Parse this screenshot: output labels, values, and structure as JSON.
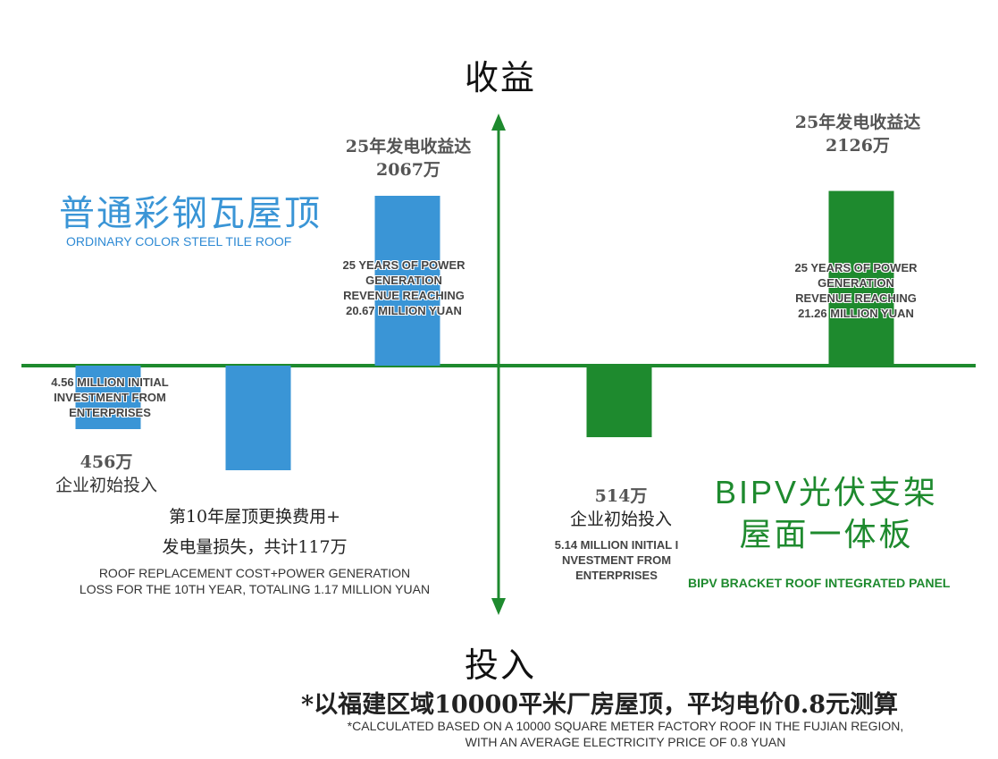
{
  "chart_data": {
    "type": "bar",
    "y_axis_top_label": "收益",
    "y_axis_bottom_label": "投入",
    "groups": [
      {
        "title_cn": "普通彩钢瓦屋顶",
        "title_en": "ORDINARY COLOR STEEL TILE ROOF",
        "color": "#3a95d6",
        "bars": [
          {
            "key": "initial",
            "value": -456,
            "label_cn": [
              "456万",
              "企业初始投入"
            ],
            "label_en": [
              "4.56 MILLION INITIAL",
              "INVESTMENT FROM",
              "ENTERPRISES"
            ]
          },
          {
            "key": "replacement",
            "value": -117,
            "label_cn": [
              "第10年屋顶更换费用+",
              "发电量损失，共计117万"
            ],
            "label_en": [
              "ROOF REPLACEMENT COST+POWER GENERATION",
              "LOSS FOR THE 10TH YEAR, TOTALING 1.17 MILLION YUAN"
            ]
          },
          {
            "key": "revenue",
            "value": 2067,
            "label_cn": [
              "25年发电收益达",
              "2067万"
            ],
            "label_en": [
              "25 YEARS OF POWER",
              "GENERATION",
              "REVENUE REACHING",
              "20.67 MILLION YUAN"
            ]
          }
        ]
      },
      {
        "title_cn": [
          "BIPV光伏支架",
          "屋面一体板"
        ],
        "title_en": "BIPV BRACKET ROOF INTEGRATED PANEL",
        "color": "#1e8a2e",
        "bars": [
          {
            "key": "initial",
            "value": -514,
            "label_cn": [
              "514万",
              "企业初始投入"
            ],
            "label_en": [
              "5.14 MILLION INITIAL I",
              "NVESTMENT FROM",
              "ENTERPRISES"
            ]
          },
          {
            "key": "revenue",
            "value": 2126,
            "label_cn": [
              "25年发电收益达",
              "2126万"
            ],
            "label_en": [
              "25 YEARS OF POWER",
              "GENERATION",
              "REVENUE REACHING",
              "21.26 MILLION YUAN"
            ]
          }
        ]
      }
    ],
    "footnote_cn": "*以福建区域10000平米厂房屋顶，平均电价0.8元测算",
    "footnote_en": [
      "*CALCULATED BASED ON A 10000 SQUARE METER FACTORY ROOF IN THE FUJIAN REGION,",
      "WITH AN AVERAGE ELECTRICITY PRICE OF 0.8 YUAN"
    ]
  }
}
